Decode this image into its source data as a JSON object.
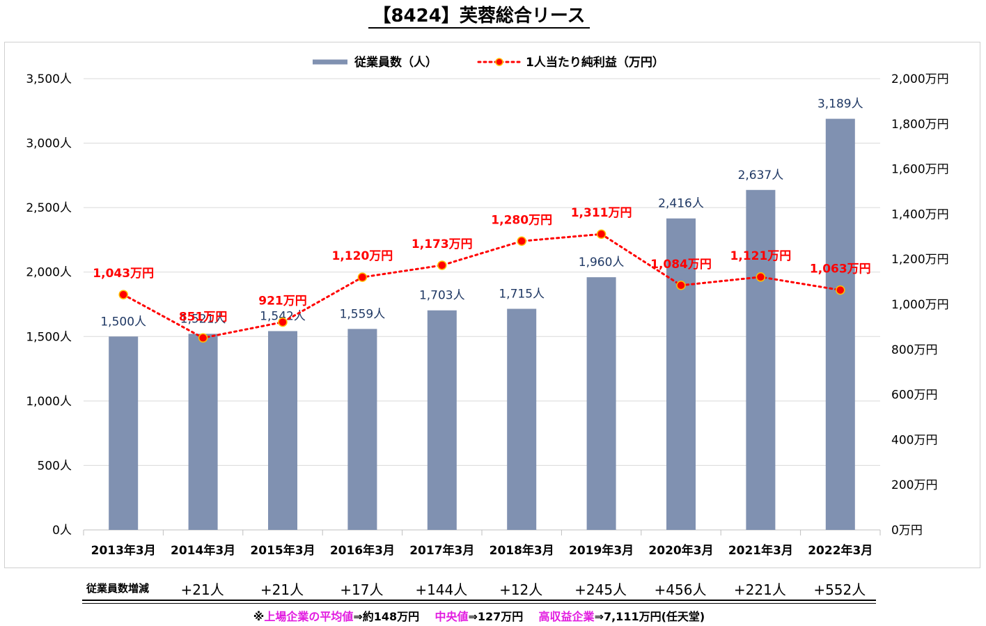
{
  "title": "【8424】芙蓉総合リース",
  "colors": {
    "bar": "#8091b1",
    "line": "#ff0000",
    "marker_fill": "#ff0000",
    "marker_stroke": "#ffc000",
    "bar_label": "#1f3864",
    "line_label": "#ff0000",
    "grid": "#d9d9d9",
    "accent_note": "#e21ce0"
  },
  "chart_data": {
    "type": "bar",
    "categories": [
      "2013年3月",
      "2014年3月",
      "2015年3月",
      "2016年3月",
      "2017年3月",
      "2018年3月",
      "2019年3月",
      "2020年3月",
      "2021年3月",
      "2022年3月"
    ],
    "series": [
      {
        "name": "従業員数（人）",
        "type": "bar",
        "axis": "left",
        "values": [
          1500,
          1521,
          1542,
          1559,
          1703,
          1715,
          1960,
          2416,
          2637,
          3189
        ],
        "labels": [
          "1,500人",
          "1,521人",
          "1,542人",
          "1,559人",
          "1,703人",
          "1,715人",
          "1,960人",
          "2,416人",
          "2,637人",
          "3,189人"
        ]
      },
      {
        "name": "1人当たり純利益（万円）",
        "type": "line",
        "axis": "right",
        "values": [
          1043,
          851,
          921,
          1120,
          1173,
          1280,
          1311,
          1084,
          1121,
          1063
        ],
        "labels": [
          "1,043万円",
          "851万円",
          "921万円",
          "1,120万円",
          "1,173万円",
          "1,280万円",
          "1,311万円",
          "1,084万円",
          "1,121万円",
          "1,063万円"
        ]
      }
    ],
    "y_left": {
      "min": 0,
      "max": 3500,
      "ticks": [
        "0人",
        "500人",
        "1,000人",
        "1,500人",
        "2,000人",
        "2,500人",
        "3,000人",
        "3,500人"
      ]
    },
    "y_right": {
      "min": 0,
      "max": 2000,
      "ticks": [
        "0万円",
        "200万円",
        "400万円",
        "600万円",
        "800万円",
        "1,000万円",
        "1,200万円",
        "1,400万円",
        "1,600万円",
        "1,800万円",
        "2,000万円"
      ]
    },
    "grid": true,
    "legend_position": "top"
  },
  "employee_change": {
    "label": "従業員数増減",
    "values": [
      "+21人",
      "+21人",
      "+17人",
      "+144人",
      "+12人",
      "+245人",
      "+456人",
      "+221人",
      "+552人"
    ]
  },
  "footnote": {
    "mark": "※",
    "listed_avg_label": "上場企業の平均値",
    "listed_avg_value": "⇒約148万円",
    "median_label": "中央値",
    "median_value": "⇒127万円",
    "high_label": "高収益企業",
    "high_value": "⇒7,111万円(任天堂)"
  }
}
